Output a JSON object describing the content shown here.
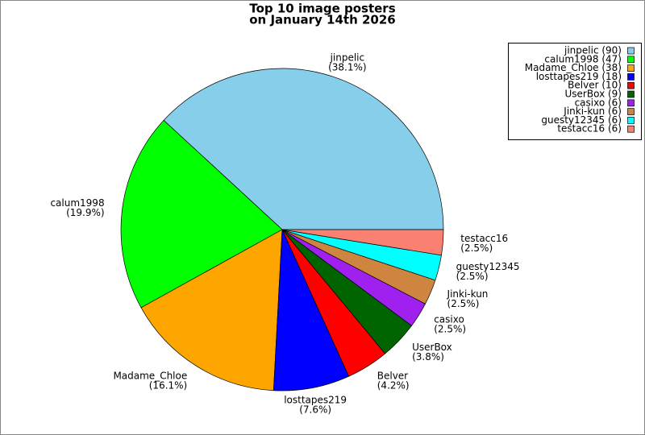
{
  "chart_data": {
    "type": "pie",
    "title": "Top 10 image posters",
    "subtitle": "on January 14th 2026",
    "categories": [
      "jinpelic",
      "calum1998",
      "Madame_Chloe",
      "losttapes219",
      "Belver",
      "UserBox",
      "casixo",
      "Jinki-kun",
      "guesty12345",
      "testacc16"
    ],
    "values": [
      90,
      47,
      38,
      18,
      10,
      9,
      6,
      6,
      6,
      6
    ],
    "percent_labels": [
      "(38.1%)",
      "(19.9%)",
      "(16.1%)",
      "(7.6%)",
      "(4.2%)",
      "(3.8%)",
      "(2.5%)",
      "(2.5%)",
      "(2.5%)",
      "(2.5%)"
    ],
    "legend_labels": [
      "jinpelic (90)",
      "calum1998 (47)",
      "Madame_Chloe (38)",
      "losttapes219 (18)",
      "Belver (10)",
      "UserBox (9)",
      "casixo (6)",
      "Jinki-kun (6)",
      "guesty12345 (6)",
      "testacc16 (6)"
    ],
    "colors": [
      "#87ceeb",
      "#00ff00",
      "#ffa500",
      "#0000ff",
      "#ff0000",
      "#006400",
      "#a020f0",
      "#cd853f",
      "#00ffff",
      "#fa8072"
    ],
    "legend": "upper right"
  }
}
